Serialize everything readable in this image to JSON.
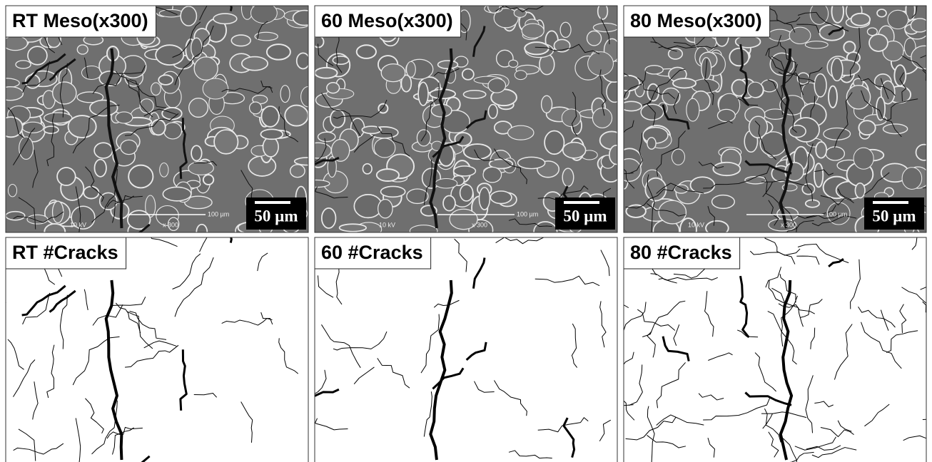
{
  "panels": [
    {
      "label": "RT Meso(x300)",
      "scale_bar": "50 µm",
      "voltage": "10 kV",
      "magnification": "x 300",
      "micron_marker": "100 µm"
    },
    {
      "label": "60 Meso(x300)",
      "scale_bar": "50 µm",
      "voltage": "10 kV",
      "magnification": "x 300",
      "micron_marker": "100 µm"
    },
    {
      "label": "80 Meso(x300)",
      "scale_bar": "50 µm",
      "voltage": "10 kV",
      "magnification": "x 300",
      "micron_marker": "100 µm"
    },
    {
      "label": "RT #Cracks"
    },
    {
      "label": "60 #Cracks"
    },
    {
      "label": "80 #Cracks"
    }
  ]
}
